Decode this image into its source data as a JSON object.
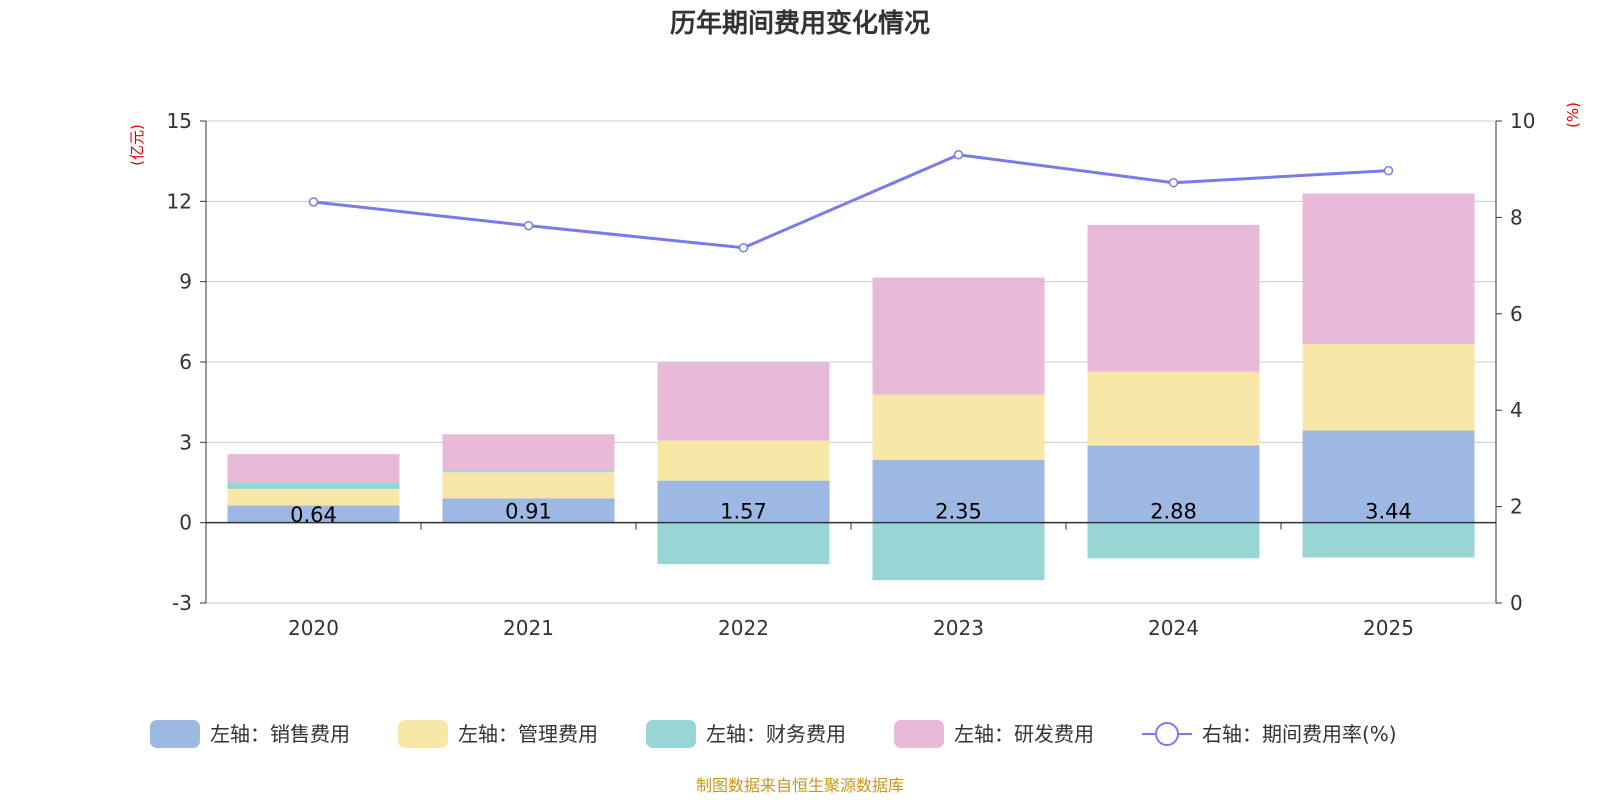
{
  "chart_data": {
    "type": "bar",
    "title": "历年期间费用变化情况",
    "categories": [
      "2020",
      "2021",
      "2022",
      "2023",
      "2024",
      "2025"
    ],
    "left_axis": {
      "unit": "(亿元)",
      "ylim": [
        -3,
        15
      ],
      "ticks": [
        "-3",
        "0",
        "3",
        "6",
        "9",
        "12",
        "15"
      ]
    },
    "right_axis": {
      "unit": "(%)",
      "ylim": [
        0,
        10
      ],
      "ticks": [
        "0",
        "2",
        "4",
        "6",
        "8",
        "10"
      ]
    },
    "series": [
      {
        "name": "左轴：销售费用",
        "type": "bar",
        "stack": "left",
        "color": "#9db8e2",
        "values": [
          0.64,
          0.91,
          1.57,
          2.35,
          2.88,
          3.44
        ],
        "labels": [
          "0.64",
          "0.91",
          "1.57",
          "2.35",
          "2.88",
          "3.44"
        ]
      },
      {
        "name": "左轴：管理费用",
        "type": "bar",
        "stack": "left",
        "color": "#f8e8a8",
        "values": [
          0.62,
          0.97,
          1.5,
          2.43,
          2.76,
          3.23
        ]
      },
      {
        "name": "左轴：财务费用",
        "type": "bar",
        "stack": "left",
        "color": "#98d5d5",
        "values": [
          0.25,
          0.08,
          -1.55,
          -2.15,
          -1.33,
          -1.3
        ]
      },
      {
        "name": "左轴：研发费用",
        "type": "bar",
        "stack": "left",
        "color": "#e8bad8",
        "values": [
          1.05,
          1.34,
          2.91,
          4.37,
          5.48,
          5.62
        ]
      },
      {
        "name": "右轴：期间费用率(%)",
        "type": "line",
        "axis": "right",
        "color": "#7b7be8",
        "values": [
          8.32,
          7.83,
          7.37,
          9.3,
          8.72,
          8.97
        ]
      }
    ],
    "grid": true,
    "legend_position": "bottom"
  },
  "footer": "制图数据来自恒生聚源数据库"
}
